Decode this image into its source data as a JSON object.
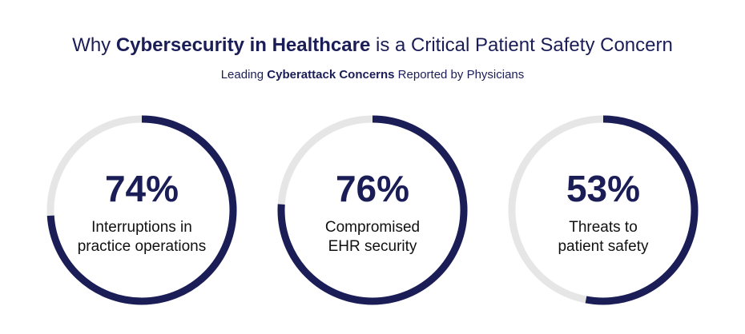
{
  "title": {
    "prefix": "Why ",
    "bold": "Cybersecurity in Healthcare",
    "suffix": " is a Critical Patient Safety Concern"
  },
  "subtitle": {
    "prefix": "Leading ",
    "bold": "Cyberattack Concerns",
    "suffix": " Reported by Physicians"
  },
  "colors": {
    "accent": "#1b1d57",
    "track": "#e6e6e6"
  },
  "chart_data": {
    "type": "pie",
    "style": "donut-gauge",
    "items": [
      {
        "value": 74,
        "value_label": "74%",
        "label_lines": [
          "Interruptions in",
          "practice operations"
        ]
      },
      {
        "value": 76,
        "value_label": "76%",
        "label_lines": [
          "Compromised",
          "EHR security"
        ]
      },
      {
        "value": 53,
        "value_label": "53%",
        "label_lines": [
          "Threats to",
          "patient safety"
        ]
      }
    ]
  }
}
